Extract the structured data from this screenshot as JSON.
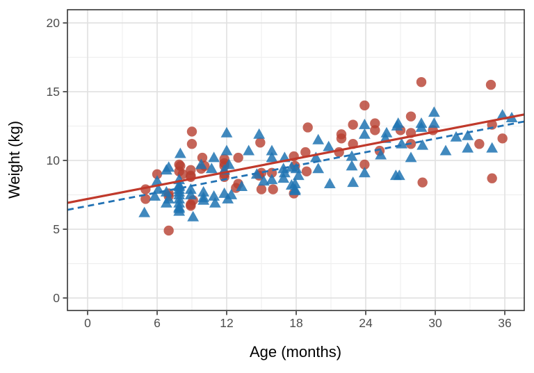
{
  "figure": {
    "description": "Scatter plot of child weight versus age with two groups and two linear fit lines"
  },
  "chart_data": {
    "type": "scatter",
    "title": "",
    "xlabel": "Age (months)",
    "ylabel": "Weight (kg)",
    "xlim": [
      -1.74,
      37.68
    ],
    "ylim": [
      -0.91,
      20.96
    ],
    "x_ticks": [
      0,
      6,
      12,
      18,
      24,
      30,
      36
    ],
    "x_minor": [
      3,
      9,
      15,
      21,
      27,
      33
    ],
    "y_ticks": [
      0,
      5,
      10,
      15,
      20
    ],
    "y_minor": [
      2.5,
      7.5,
      12.5,
      17.5
    ],
    "grid": "on",
    "legend": "none",
    "panel_border_color": "#333333",
    "major_grid_color": "#e2e2e2",
    "minor_grid_color": "#efefef",
    "tick_color": "#333333",
    "tick_label_color": "#4d4d4d",
    "series": [
      {
        "name": "group-circles",
        "marker": "circle",
        "fill": "#B73E30",
        "opacity": 0.8,
        "points": [
          [
            5.0,
            7.9
          ],
          [
            5.0,
            7.2
          ],
          [
            6.0,
            9.0
          ],
          [
            7.0,
            7.6
          ],
          [
            7.0,
            7.4
          ],
          [
            7.0,
            4.9
          ],
          [
            7.9,
            9.7
          ],
          [
            8.0,
            9.6
          ],
          [
            7.9,
            9.2
          ],
          [
            8.2,
            9.0
          ],
          [
            8.9,
            9.3
          ],
          [
            8.9,
            8.9
          ],
          [
            8.9,
            8.8
          ],
          [
            8.9,
            6.8
          ],
          [
            8.9,
            6.7
          ],
          [
            9.0,
            12.1
          ],
          [
            9.0,
            11.2
          ],
          [
            9.1,
            7.1
          ],
          [
            9.8,
            9.4
          ],
          [
            9.9,
            10.2
          ],
          [
            10.1,
            9.6
          ],
          [
            11.8,
            10.1
          ],
          [
            11.8,
            9.8
          ],
          [
            11.8,
            9.6
          ],
          [
            11.8,
            9.0
          ],
          [
            11.8,
            8.8
          ],
          [
            12.8,
            8.0
          ],
          [
            13.0,
            10.2
          ],
          [
            13.0,
            8.3
          ],
          [
            14.8,
            8.9
          ],
          [
            14.9,
            11.3
          ],
          [
            15.0,
            9.1
          ],
          [
            15.0,
            7.9
          ],
          [
            15.9,
            9.1
          ],
          [
            16.0,
            7.9
          ],
          [
            17.8,
            10.3
          ],
          [
            17.8,
            7.6
          ],
          [
            17.9,
            9.6
          ],
          [
            18.8,
            10.6
          ],
          [
            18.9,
            9.2
          ],
          [
            19.0,
            12.4
          ],
          [
            21.7,
            10.6
          ],
          [
            21.9,
            11.9
          ],
          [
            21.9,
            11.6
          ],
          [
            22.9,
            12.6
          ],
          [
            22.9,
            11.2
          ],
          [
            23.9,
            14.0
          ],
          [
            23.9,
            9.7
          ],
          [
            24.8,
            12.7
          ],
          [
            24.8,
            12.2
          ],
          [
            25.2,
            10.7
          ],
          [
            27.0,
            12.2
          ],
          [
            27.9,
            13.2
          ],
          [
            27.9,
            12.0
          ],
          [
            27.9,
            11.2
          ],
          [
            28.8,
            15.7
          ],
          [
            28.9,
            8.4
          ],
          [
            29.8,
            12.2
          ],
          [
            33.8,
            11.2
          ],
          [
            34.8,
            15.5
          ],
          [
            34.9,
            12.6
          ],
          [
            34.9,
            8.7
          ],
          [
            35.8,
            11.6
          ]
        ]
      },
      {
        "name": "group-triangles",
        "marker": "triangle",
        "fill": "#2074B3",
        "opacity": 0.85,
        "points": [
          [
            4.9,
            6.2
          ],
          [
            5.8,
            7.4
          ],
          [
            6.0,
            8.5
          ],
          [
            6.1,
            7.9
          ],
          [
            6.8,
            9.3
          ],
          [
            6.8,
            7.7
          ],
          [
            6.8,
            6.9
          ],
          [
            7.0,
            9.5
          ],
          [
            7.0,
            7.2
          ],
          [
            7.9,
            8.6
          ],
          [
            7.9,
            8.2
          ],
          [
            7.9,
            8.1
          ],
          [
            7.9,
            7.9
          ],
          [
            7.9,
            7.7
          ],
          [
            7.9,
            7.5
          ],
          [
            7.9,
            7.2
          ],
          [
            7.9,
            6.9
          ],
          [
            7.9,
            6.6
          ],
          [
            7.9,
            6.5
          ],
          [
            7.9,
            6.3
          ],
          [
            8.0,
            10.5
          ],
          [
            8.9,
            7.9
          ],
          [
            8.9,
            7.5
          ],
          [
            9.1,
            5.9
          ],
          [
            9.8,
            9.7
          ],
          [
            10.0,
            7.7
          ],
          [
            10.0,
            7.3
          ],
          [
            10.0,
            7.1
          ],
          [
            10.7,
            9.4
          ],
          [
            10.9,
            10.2
          ],
          [
            10.9,
            7.4
          ],
          [
            11.0,
            6.9
          ],
          [
            11.8,
            9.3
          ],
          [
            11.8,
            7.6
          ],
          [
            12.0,
            12.0
          ],
          [
            12.0,
            10.7
          ],
          [
            12.1,
            7.2
          ],
          [
            12.2,
            9.7
          ],
          [
            12.4,
            7.5
          ],
          [
            13.3,
            8.1
          ],
          [
            13.9,
            10.7
          ],
          [
            14.6,
            9.0
          ],
          [
            14.8,
            11.9
          ],
          [
            15.2,
            8.5
          ],
          [
            15.9,
            10.7
          ],
          [
            15.9,
            10.2
          ],
          [
            15.9,
            8.6
          ],
          [
            16.9,
            9.4
          ],
          [
            16.9,
            8.7
          ],
          [
            17.0,
            10.2
          ],
          [
            17.0,
            9.1
          ],
          [
            17.6,
            9.5
          ],
          [
            17.6,
            8.2
          ],
          [
            17.9,
            8.3
          ],
          [
            17.9,
            7.9
          ],
          [
            17.9,
            7.8
          ],
          [
            18.0,
            9.4
          ],
          [
            18.2,
            8.9
          ],
          [
            19.7,
            10.2
          ],
          [
            19.9,
            11.5
          ],
          [
            19.9,
            9.4
          ],
          [
            20.8,
            11.0
          ],
          [
            20.9,
            8.3
          ],
          [
            22.8,
            10.3
          ],
          [
            22.8,
            9.6
          ],
          [
            22.9,
            8.4
          ],
          [
            23.9,
            12.6
          ],
          [
            23.9,
            11.9
          ],
          [
            23.9,
            9.1
          ],
          [
            25.3,
            10.4
          ],
          [
            25.7,
            11.6
          ],
          [
            25.8,
            12.0
          ],
          [
            26.6,
            8.9
          ],
          [
            26.7,
            12.5
          ],
          [
            26.8,
            12.7
          ],
          [
            26.9,
            8.9
          ],
          [
            27.1,
            11.2
          ],
          [
            27.9,
            10.2
          ],
          [
            28.8,
            12.7
          ],
          [
            28.8,
            12.4
          ],
          [
            28.9,
            11.1
          ],
          [
            29.9,
            13.5
          ],
          [
            29.9,
            12.7
          ],
          [
            30.9,
            10.7
          ],
          [
            31.8,
            11.7
          ],
          [
            32.8,
            11.8
          ],
          [
            32.8,
            10.9
          ],
          [
            34.9,
            10.9
          ],
          [
            35.8,
            13.3
          ],
          [
            36.6,
            13.1
          ]
        ]
      }
    ],
    "fit_lines": [
      {
        "name": "fit-line-dashed",
        "style": "dashed",
        "color": "#2272B4",
        "width": 2.8,
        "dash": "9 6",
        "intercept": 6.69,
        "slope": 0.163
      },
      {
        "name": "fit-line-solid",
        "style": "solid",
        "color": "#C0392B",
        "width": 3.2,
        "dash": "",
        "intercept": 7.2,
        "slope": 0.163
      }
    ]
  }
}
